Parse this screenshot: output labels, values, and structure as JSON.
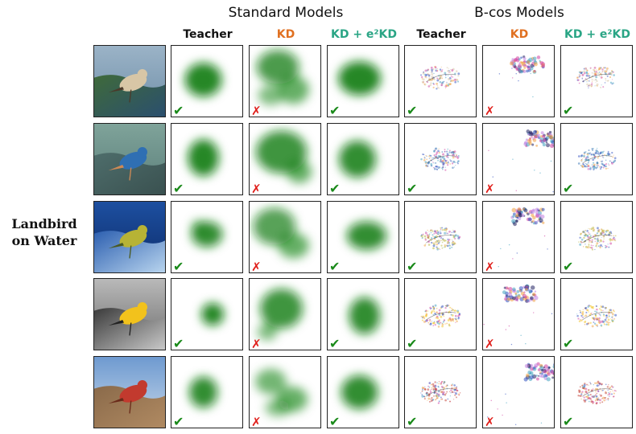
{
  "groups": {
    "standard": "Standard Models",
    "bcos": "B-cos Models"
  },
  "columns": [
    {
      "label": "Teacher",
      "color": "#111111"
    },
    {
      "label": "KD",
      "color": "#e07020"
    },
    {
      "label": "KD + e²KD",
      "color": "#2aa585"
    },
    {
      "label": "Teacher",
      "color": "#111111"
    },
    {
      "label": "KD",
      "color": "#e07020"
    },
    {
      "label": "KD + e²KD",
      "color": "#2aa585"
    }
  ],
  "row_label_lines": [
    "Landbird",
    "on Water"
  ],
  "rows": [
    {
      "image": "bird-on-cliff",
      "marks": [
        "✔",
        "✗",
        "✔",
        "✔",
        "✗",
        "✔"
      ]
    },
    {
      "image": "blue-bird-on-branch",
      "marks": [
        "✔",
        "✗",
        "✔",
        "✔",
        "✗",
        "✔"
      ]
    },
    {
      "image": "yellow-bird-on-water",
      "marks": [
        "✔",
        "✗",
        "✔",
        "✔",
        "✗",
        "✔"
      ]
    },
    {
      "image": "goldfinch-on-shore",
      "marks": [
        "✔",
        "✗",
        "✔",
        "✔",
        "✗",
        "✔"
      ]
    },
    {
      "image": "red-bird-on-beach",
      "marks": [
        "✔",
        "✗",
        "✔",
        "✔",
        "✗",
        "✔"
      ]
    }
  ],
  "colors": {
    "check": "#1a8a1a",
    "cross": "#e0201c",
    "heat": "#0a7a0a",
    "kd": "#e07020",
    "e2kd": "#2aa585"
  }
}
